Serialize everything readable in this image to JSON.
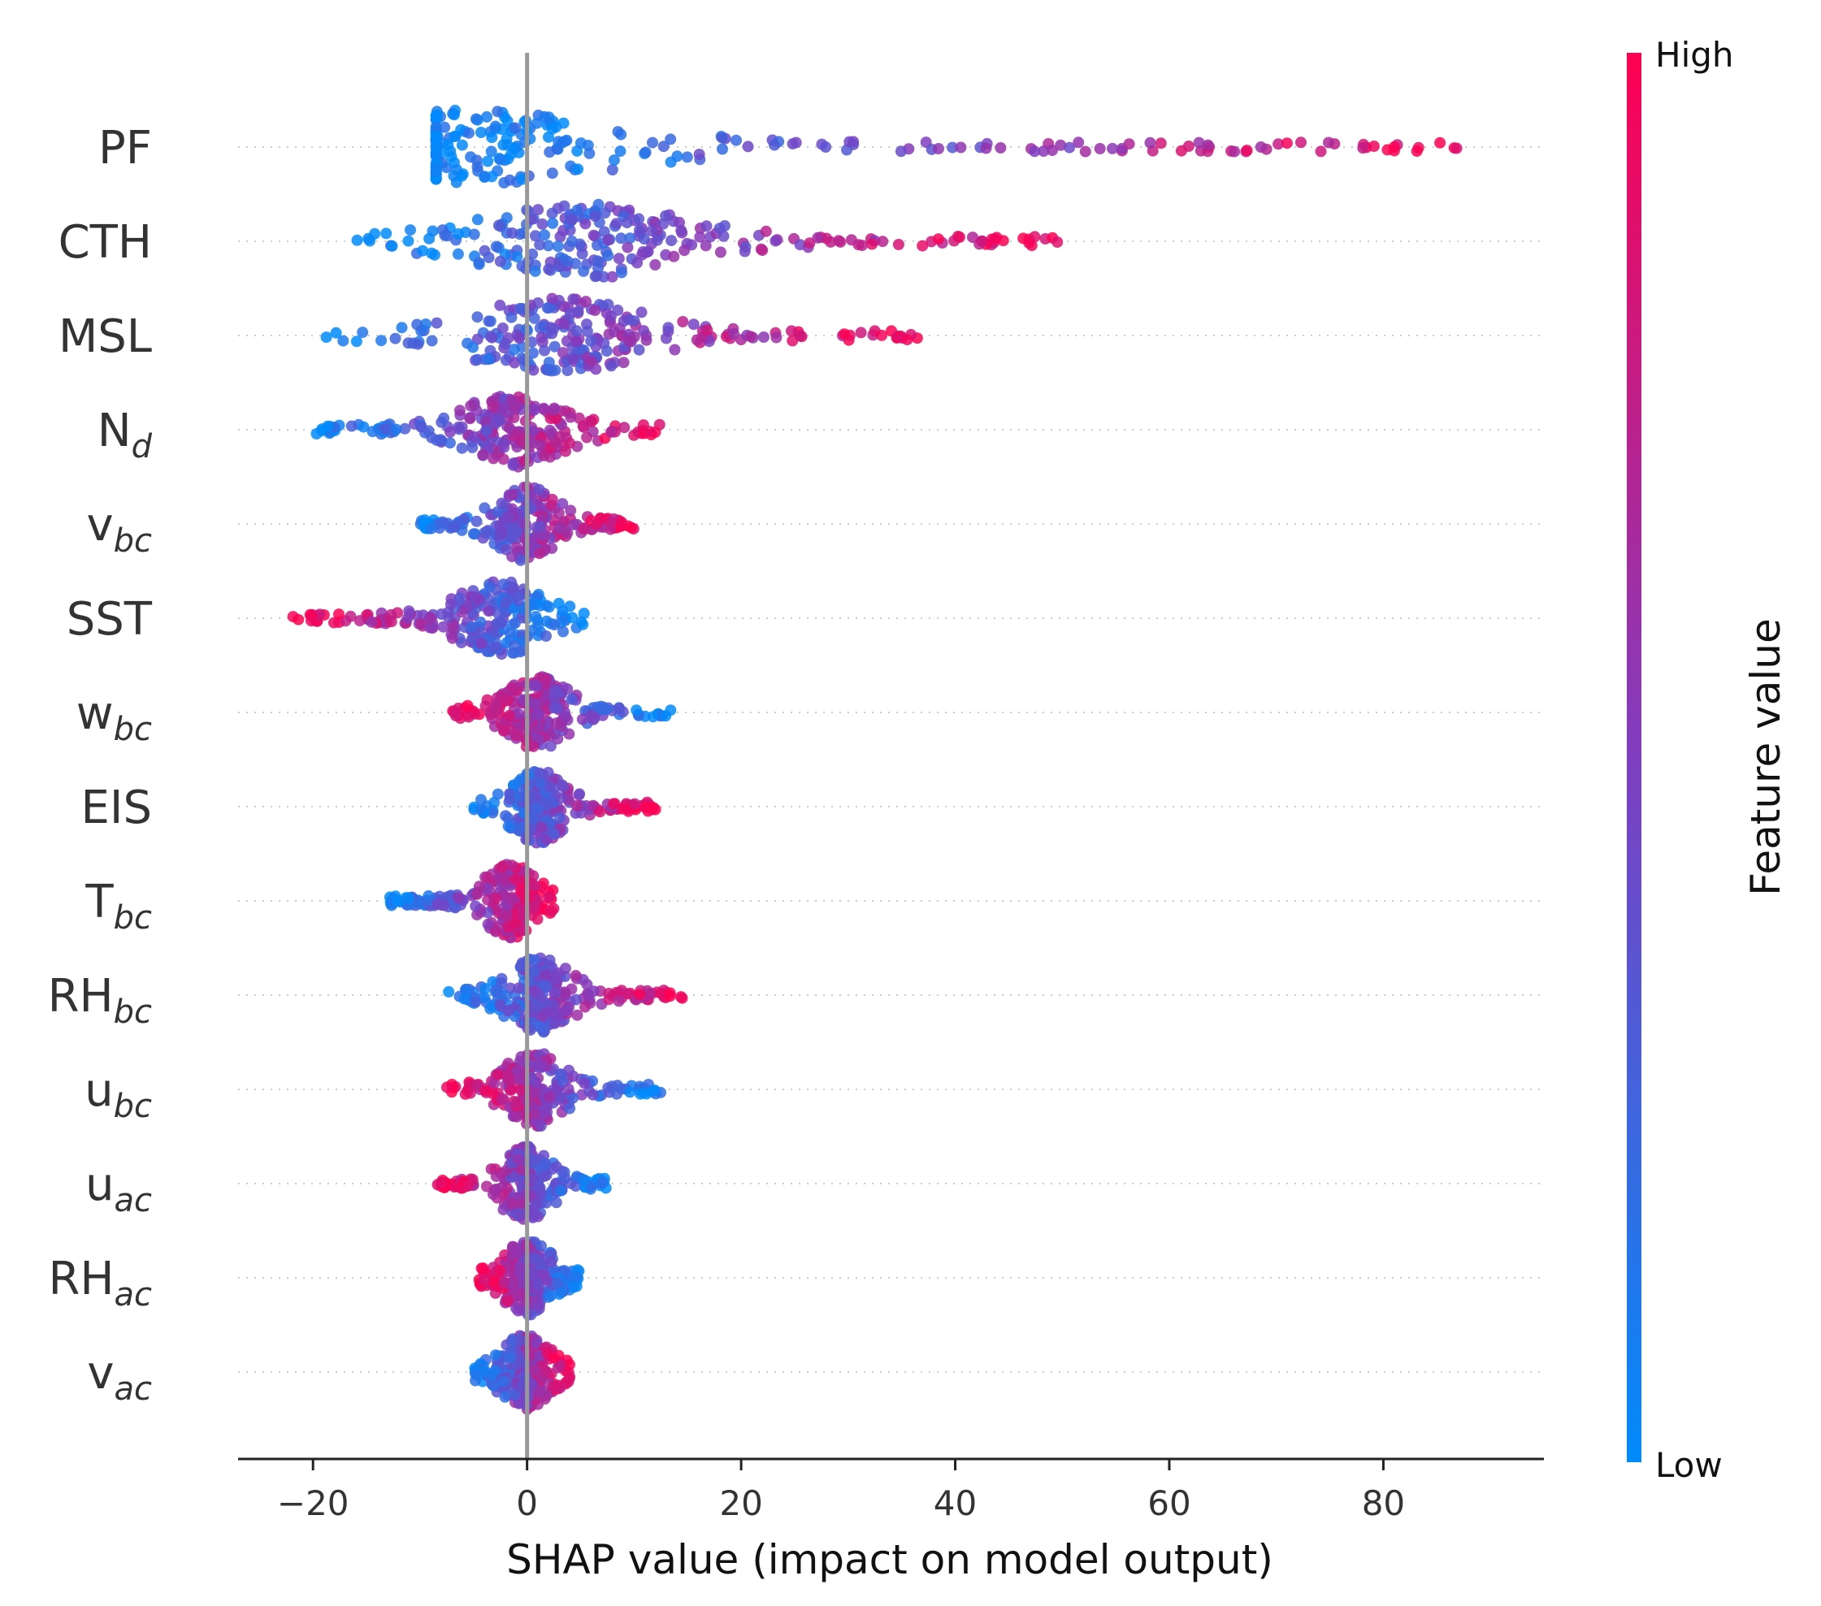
{
  "chart_data": {
    "type": "scatter",
    "subtype": "shap-beeswarm",
    "title": "",
    "xlabel": "SHAP value (impact on model output)",
    "ylabel": "",
    "xlim": [
      -27,
      95
    ],
    "xticks": [
      -20,
      0,
      20,
      40,
      60,
      80
    ],
    "xtick_labels": [
      "−20",
      "0",
      "20",
      "40",
      "60",
      "80"
    ],
    "grid": false,
    "colorbar": {
      "label": "Feature value",
      "high_label": "High",
      "low_label": "Low",
      "low_color": "#008bfb",
      "high_color": "#ff0052"
    },
    "features": [
      {
        "name": "PF",
        "sub": "",
        "min": -8.5,
        "max": 89.5,
        "note": "low values cluster near -6; high values extend right"
      },
      {
        "name": "CTH",
        "sub": "",
        "min": -16,
        "max": 51,
        "note": "low left, high right"
      },
      {
        "name": "MSL",
        "sub": "",
        "min": -19,
        "max": 37,
        "note": "low left, high right"
      },
      {
        "name": "N",
        "sub": "d",
        "min": -20,
        "max": 12.5,
        "note": "low left, high right"
      },
      {
        "name": "v",
        "sub": "bc",
        "min": -10,
        "max": 10,
        "note": "low left, high right"
      },
      {
        "name": "SST",
        "sub": "",
        "min": -22,
        "max": 5.5,
        "note": "high left, low near zero"
      },
      {
        "name": "w",
        "sub": "bc",
        "min": -7,
        "max": 13.5,
        "note": "high left, low right"
      },
      {
        "name": "EIS",
        "sub": "",
        "min": -5,
        "max": 12,
        "note": "low left, high right"
      },
      {
        "name": "T",
        "sub": "bc",
        "min": -13,
        "max": 2.5,
        "note": "low left, high near zero"
      },
      {
        "name": "RH",
        "sub": "bc",
        "min": -7.5,
        "max": 14.5,
        "note": "mixed left, high right"
      },
      {
        "name": "u",
        "sub": "bc",
        "min": -7.5,
        "max": 12.5,
        "note": "high left, low right"
      },
      {
        "name": "u",
        "sub": "ac",
        "min": -8.5,
        "max": 7.5,
        "note": "high left, low right"
      },
      {
        "name": "RH",
        "sub": "ac",
        "min": -4.5,
        "max": 5,
        "note": "high left, low right"
      },
      {
        "name": "v",
        "sub": "ac",
        "min": -5,
        "max": 4,
        "note": "low left, high right"
      }
    ]
  }
}
